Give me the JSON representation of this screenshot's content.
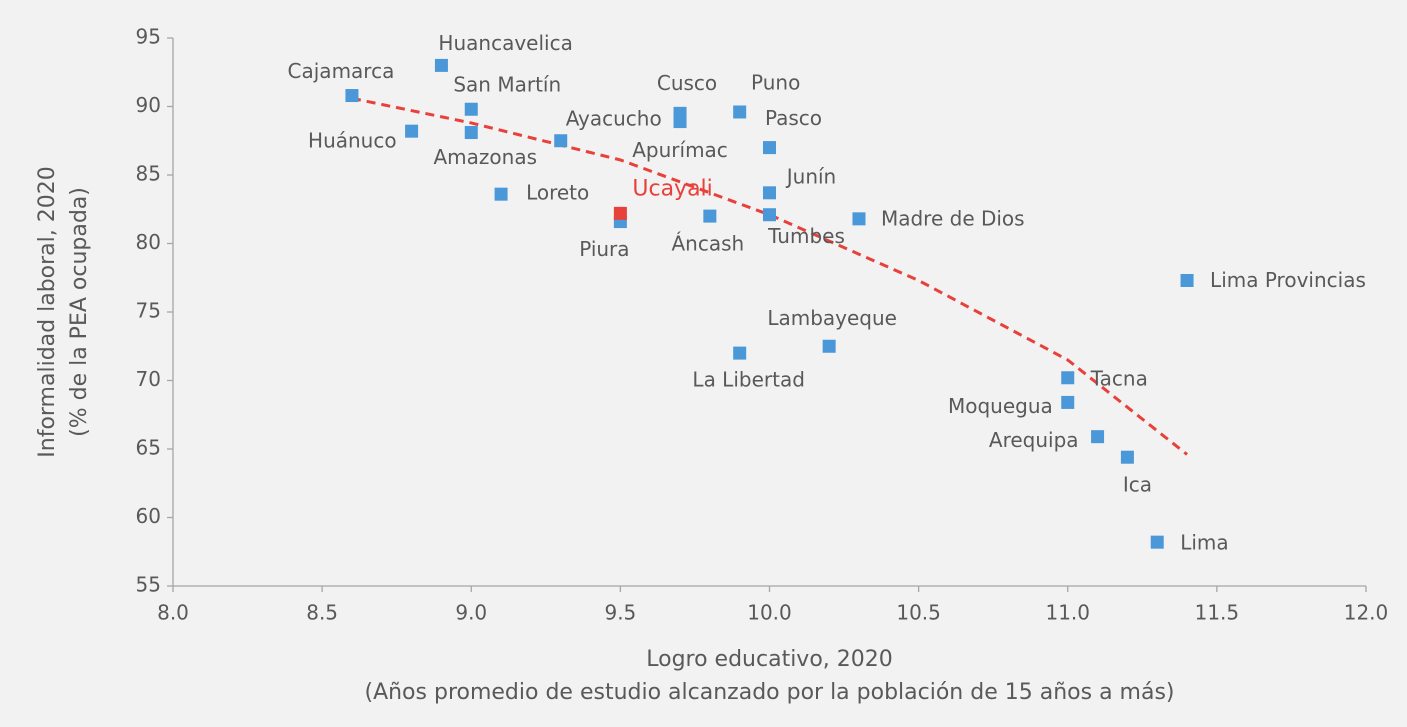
{
  "chart_data": {
    "type": "scatter",
    "xlabel": [
      "Logro educativo, 2020",
      "(Años promedio de estudio alcanzado por la población de 15 años a más)"
    ],
    "ylabel": [
      "Informalidad laboral, 2020",
      "(% de la PEA ocupada)"
    ],
    "xlim": [
      8,
      12
    ],
    "xticks": [
      {
        "value": 8,
        "label": "8.0"
      },
      {
        "value": 8.5,
        "label": "8.5"
      },
      {
        "value": 9,
        "label": "9.0"
      },
      {
        "value": 9.5,
        "label": "9.5"
      },
      {
        "value": 10,
        "label": "10.0"
      },
      {
        "value": 10.5,
        "label": "10.5"
      },
      {
        "value": 11,
        "label": "11.0"
      },
      {
        "value": 11.5,
        "label": "11.5"
      },
      {
        "value": 12,
        "label": "12.0"
      }
    ],
    "ylim": [
      55,
      95
    ],
    "yticks": [
      55,
      60,
      65,
      70,
      75,
      80,
      85,
      90,
      95
    ],
    "series": [
      {
        "color": "#4a98d8",
        "labels": [
          "Cajamarca",
          "Huancavelica",
          "San Martín",
          "Huánuco",
          "Amazonas",
          "Ayacucho",
          "Loreto",
          "Piura",
          "Cusco",
          "Apurímac",
          "Puno",
          "Pasco",
          "Junín",
          "Tumbes",
          "Áncash",
          "Madre de Dios",
          "Lima Provincias",
          "Lambayeque",
          "La Libertad",
          "Tacna",
          "Moquegua",
          "Arequipa",
          "Ica",
          "Lima"
        ],
        "x": [
          8.6,
          8.9,
          9.0,
          8.8,
          9.0,
          9.3,
          9.1,
          9.5,
          9.7,
          9.7,
          9.9,
          10.0,
          10.0,
          10.0,
          9.8,
          10.3,
          11.4,
          10.2,
          9.9,
          11.0,
          11.0,
          11.1,
          11.2,
          11.3
        ],
        "values": [
          90.8,
          93.0,
          89.8,
          88.2,
          88.1,
          87.5,
          83.6,
          81.6,
          89.5,
          88.9,
          89.6,
          87.0,
          83.7,
          82.1,
          82.0,
          81.8,
          77.3,
          72.5,
          72.0,
          70.2,
          68.4,
          65.9,
          64.4,
          58.2
        ]
      },
      {
        "color": "#e8403a",
        "labels": [
          "Ucayali"
        ],
        "x": [
          9.5
        ],
        "values": [
          82.2
        ]
      }
    ],
    "trend": {
      "color": "#e8403a",
      "x": [
        8.6,
        9.0,
        9.5,
        10.0,
        10.5,
        11.0,
        11.4
      ],
      "values": [
        90.6,
        88.8,
        86.1,
        82.1,
        77.3,
        71.5,
        64.6
      ]
    }
  }
}
